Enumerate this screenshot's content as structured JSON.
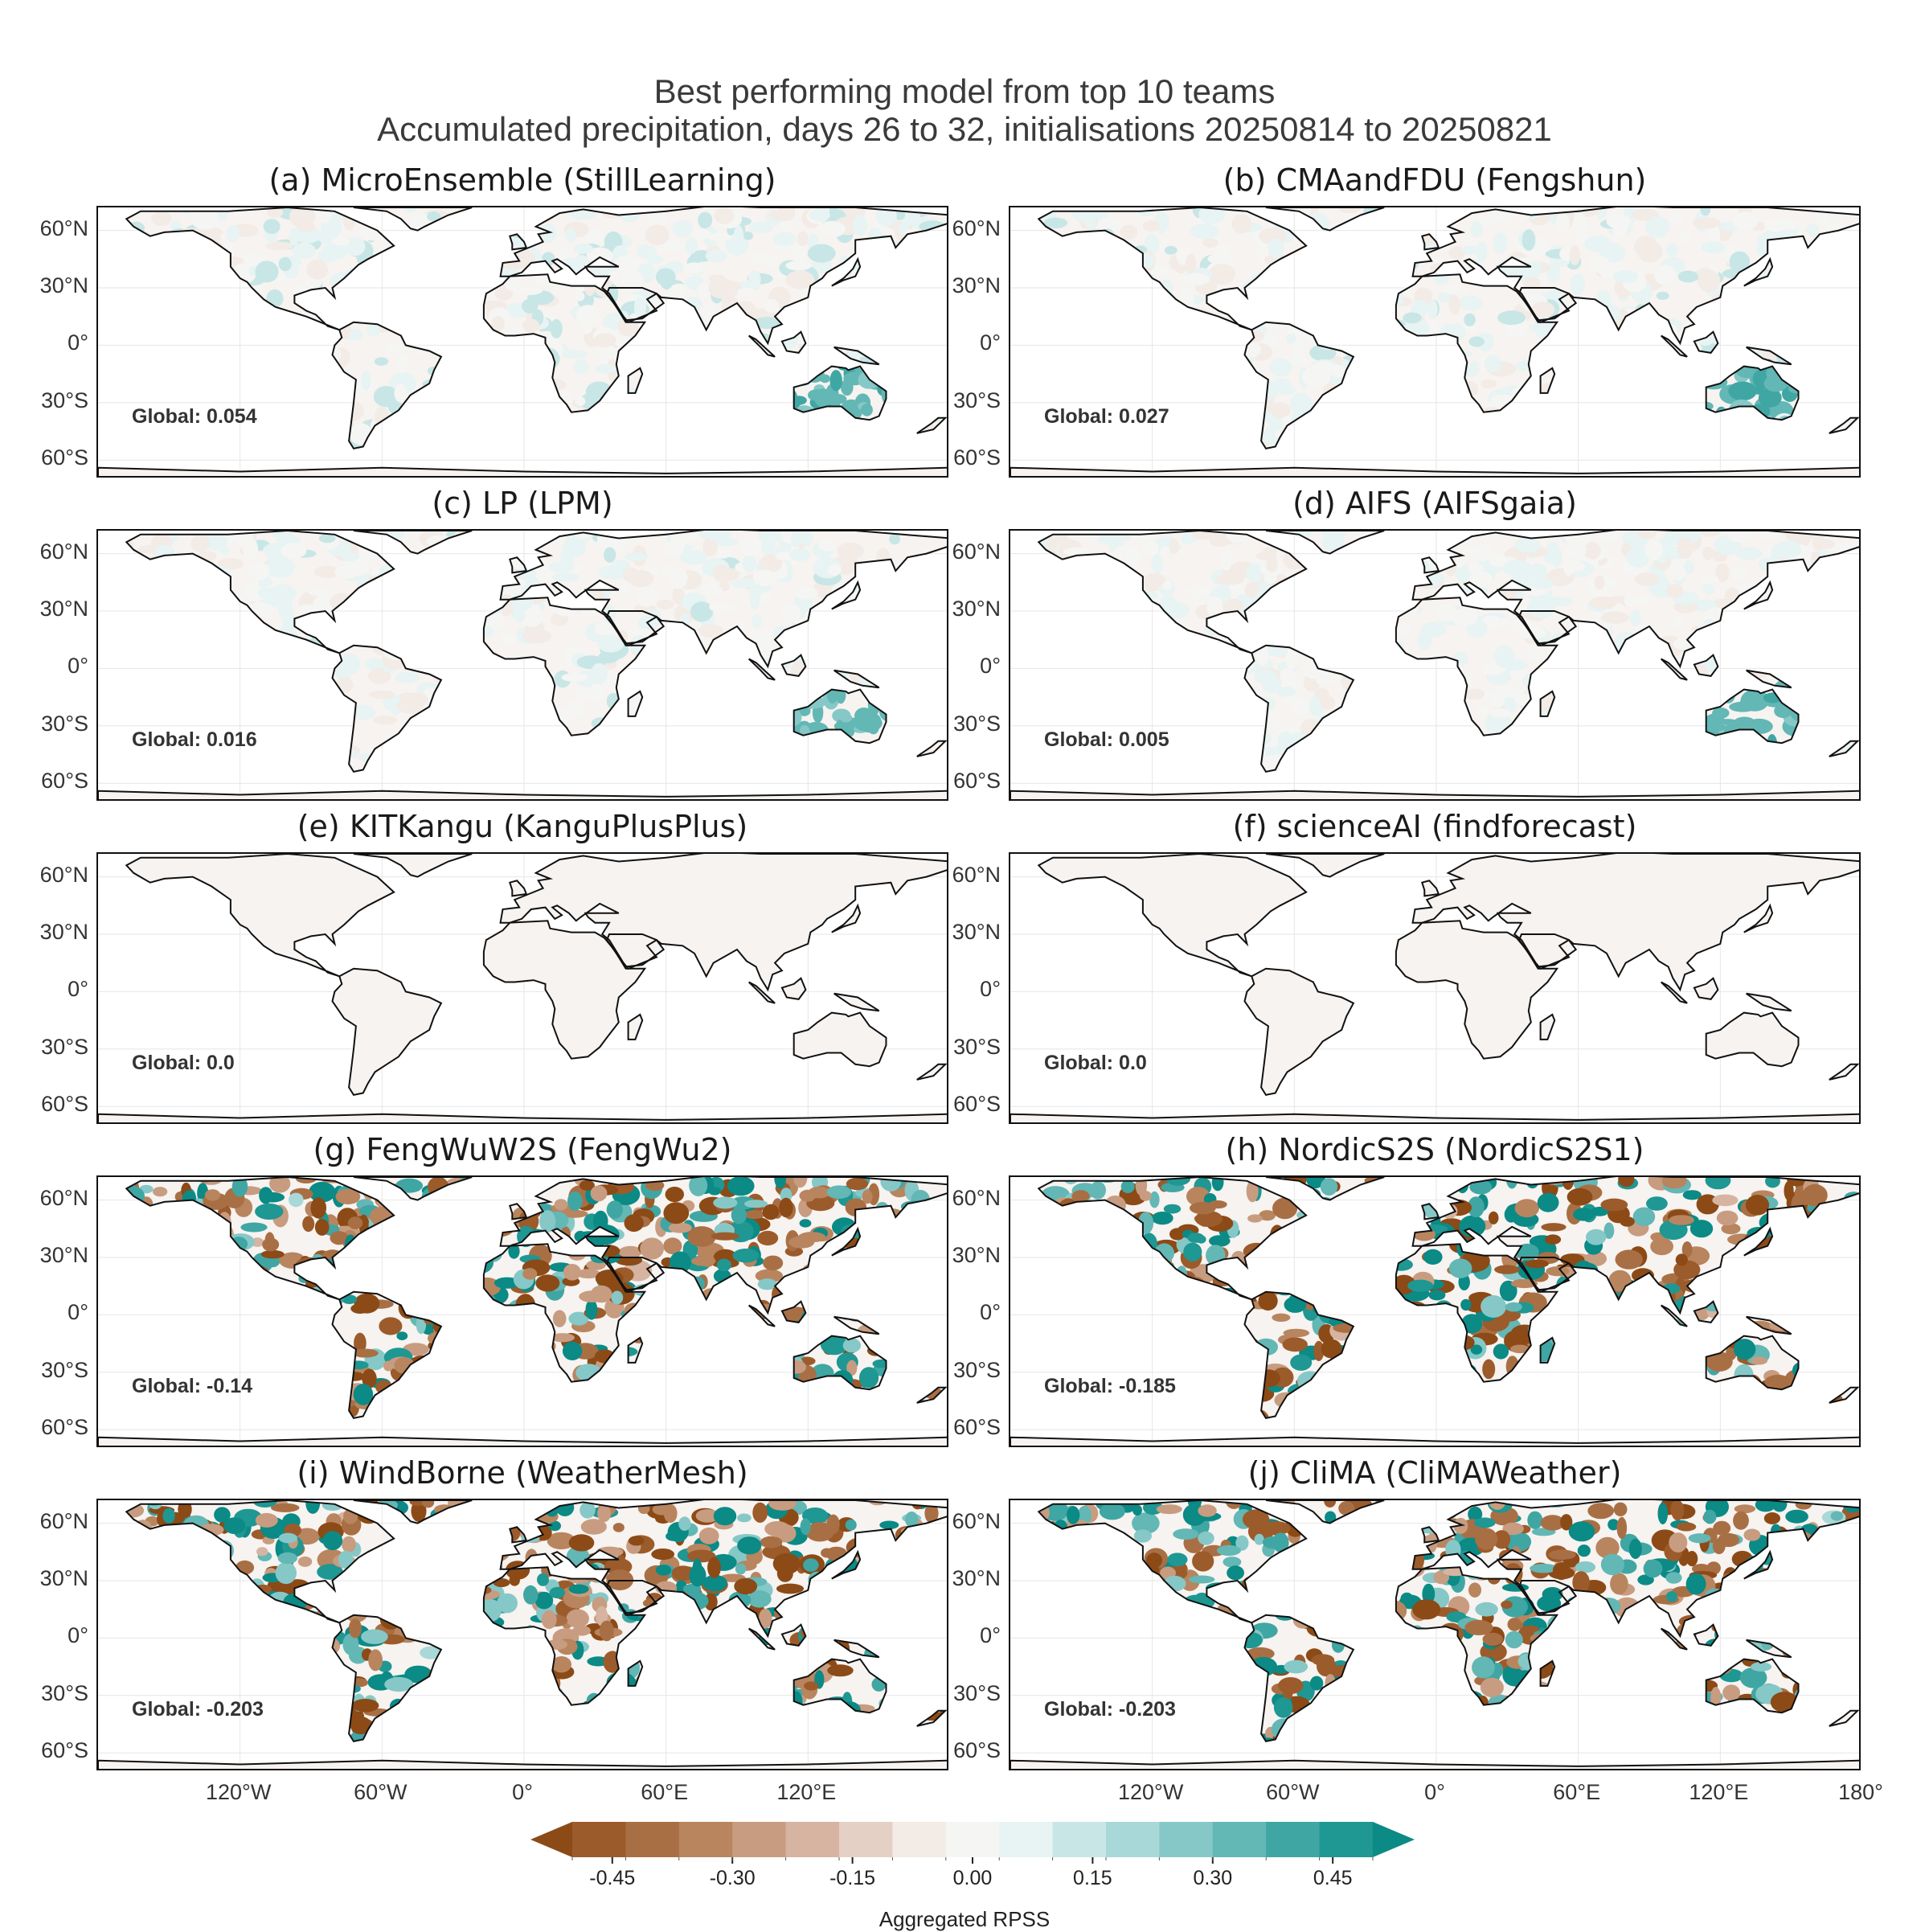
{
  "figure": {
    "title_line1": "Best performing model from top 10 teams",
    "title_line2": "Accumulated precipitation, days 26 to 32, initialisations 20250814 to 20250821"
  },
  "chart_data": {
    "type": "heatmap",
    "projection": "PlateCarree world maps, 2 columns x 5 rows",
    "lat_ticks": [
      "60°N",
      "30°N",
      "0°",
      "30°S",
      "60°S"
    ],
    "lon_ticks_left": [
      "120°W",
      "60°W",
      "0°",
      "60°E",
      "120°E"
    ],
    "lon_ticks_right": [
      "120°W",
      "60°W",
      "0°",
      "60°E",
      "120°E",
      "180°"
    ],
    "grid": true,
    "panels": [
      {
        "title": "(a) MicroEnsemble (StillLearning)",
        "global_label": "Global: 0.054",
        "global": 0.054
      },
      {
        "title": "(b) CMAandFDU (Fengshun)",
        "global_label": "Global: 0.027",
        "global": 0.027
      },
      {
        "title": "(c) LP (LPM)",
        "global_label": "Global: 0.016",
        "global": 0.016
      },
      {
        "title": "(d) AIFS (AIFSgaia)",
        "global_label": "Global: 0.005",
        "global": 0.005
      },
      {
        "title": "(e) KITKangu (KanguPlusPlus)",
        "global_label": "Global: 0.0",
        "global": 0.0
      },
      {
        "title": "(f) scienceAI (findforecast)",
        "global_label": "Global: 0.0",
        "global": 0.0
      },
      {
        "title": "(g) FengWuW2S (FengWu2)",
        "global_label": "Global: -0.14",
        "global": -0.14
      },
      {
        "title": "(h) NordicS2S (NordicS2S1)",
        "global_label": "Global: -0.185",
        "global": -0.185
      },
      {
        "title": "(i) WindBorne (WeatherMesh)",
        "global_label": "Global: -0.203",
        "global": -0.203
      },
      {
        "title": "(j) CliMA (CliMAWeather)",
        "global_label": "Global: -0.203",
        "global": -0.203
      }
    ],
    "colorbar": {
      "label": "Aggregated RPSS",
      "ticks": [
        "-0.45",
        "-0.30",
        "-0.15",
        "0.00",
        "0.15",
        "0.30",
        "0.45"
      ],
      "range": [
        -0.5,
        0.5
      ],
      "extend": "both",
      "colors": [
        "#8c4a16",
        "#9c5b2b",
        "#a96f44",
        "#b8855f",
        "#c89c80",
        "#d6b4a1",
        "#e4d0c4",
        "#f2ebe6",
        "#f5f5f3",
        "#e8f3f3",
        "#c8e6e6",
        "#a8d8d8",
        "#86c8c7",
        "#63b7b5",
        "#40a6a3",
        "#1f9793",
        "#0b8a86"
      ]
    }
  }
}
